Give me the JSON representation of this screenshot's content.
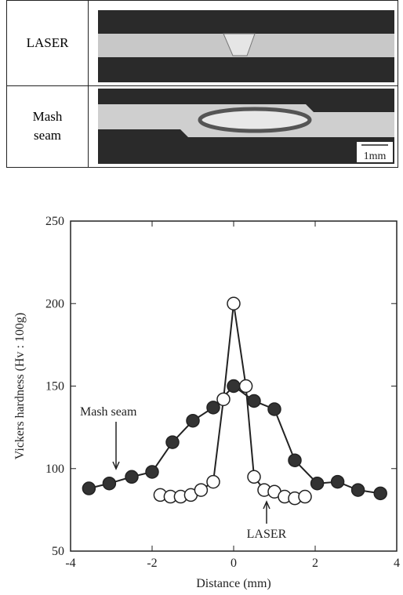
{
  "micrograph": {
    "rows": [
      "LASER",
      "Mash seam"
    ],
    "scale_label": "1mm"
  },
  "chart_data": {
    "type": "line",
    "xlabel": "Distance (mm)",
    "ylabel": "Vickers hardness (Hv : 100g)",
    "xlim": [
      -4,
      4
    ],
    "xticks": [
      -4,
      -2,
      0,
      2,
      4
    ],
    "ylim": [
      50,
      250
    ],
    "yticks": [
      50,
      100,
      150,
      200,
      250
    ],
    "series": [
      {
        "name": "Mash seam",
        "color": "#333333",
        "x": [
          -3.55,
          -3.05,
          -2.5,
          -2.0,
          -1.5,
          -1.0,
          -0.5,
          0,
          0.5,
          1.0,
          1.5,
          2.05,
          2.55,
          3.05,
          3.6
        ],
        "values": [
          88,
          91,
          95,
          98,
          116,
          129,
          137,
          150,
          141,
          136,
          105,
          91,
          92,
          87,
          85
        ]
      },
      {
        "name": "LASER",
        "color": "#ffffff",
        "x": [
          -1.8,
          -1.55,
          -1.3,
          -1.05,
          -0.8,
          -0.5,
          -0.25,
          0,
          0.3,
          0.5,
          0.75,
          1.0,
          1.25,
          1.5,
          1.75
        ],
        "values": [
          84,
          83,
          83,
          84,
          87,
          92,
          142,
          200,
          150,
          95,
          87,
          86,
          83,
          82,
          83
        ]
      }
    ]
  }
}
